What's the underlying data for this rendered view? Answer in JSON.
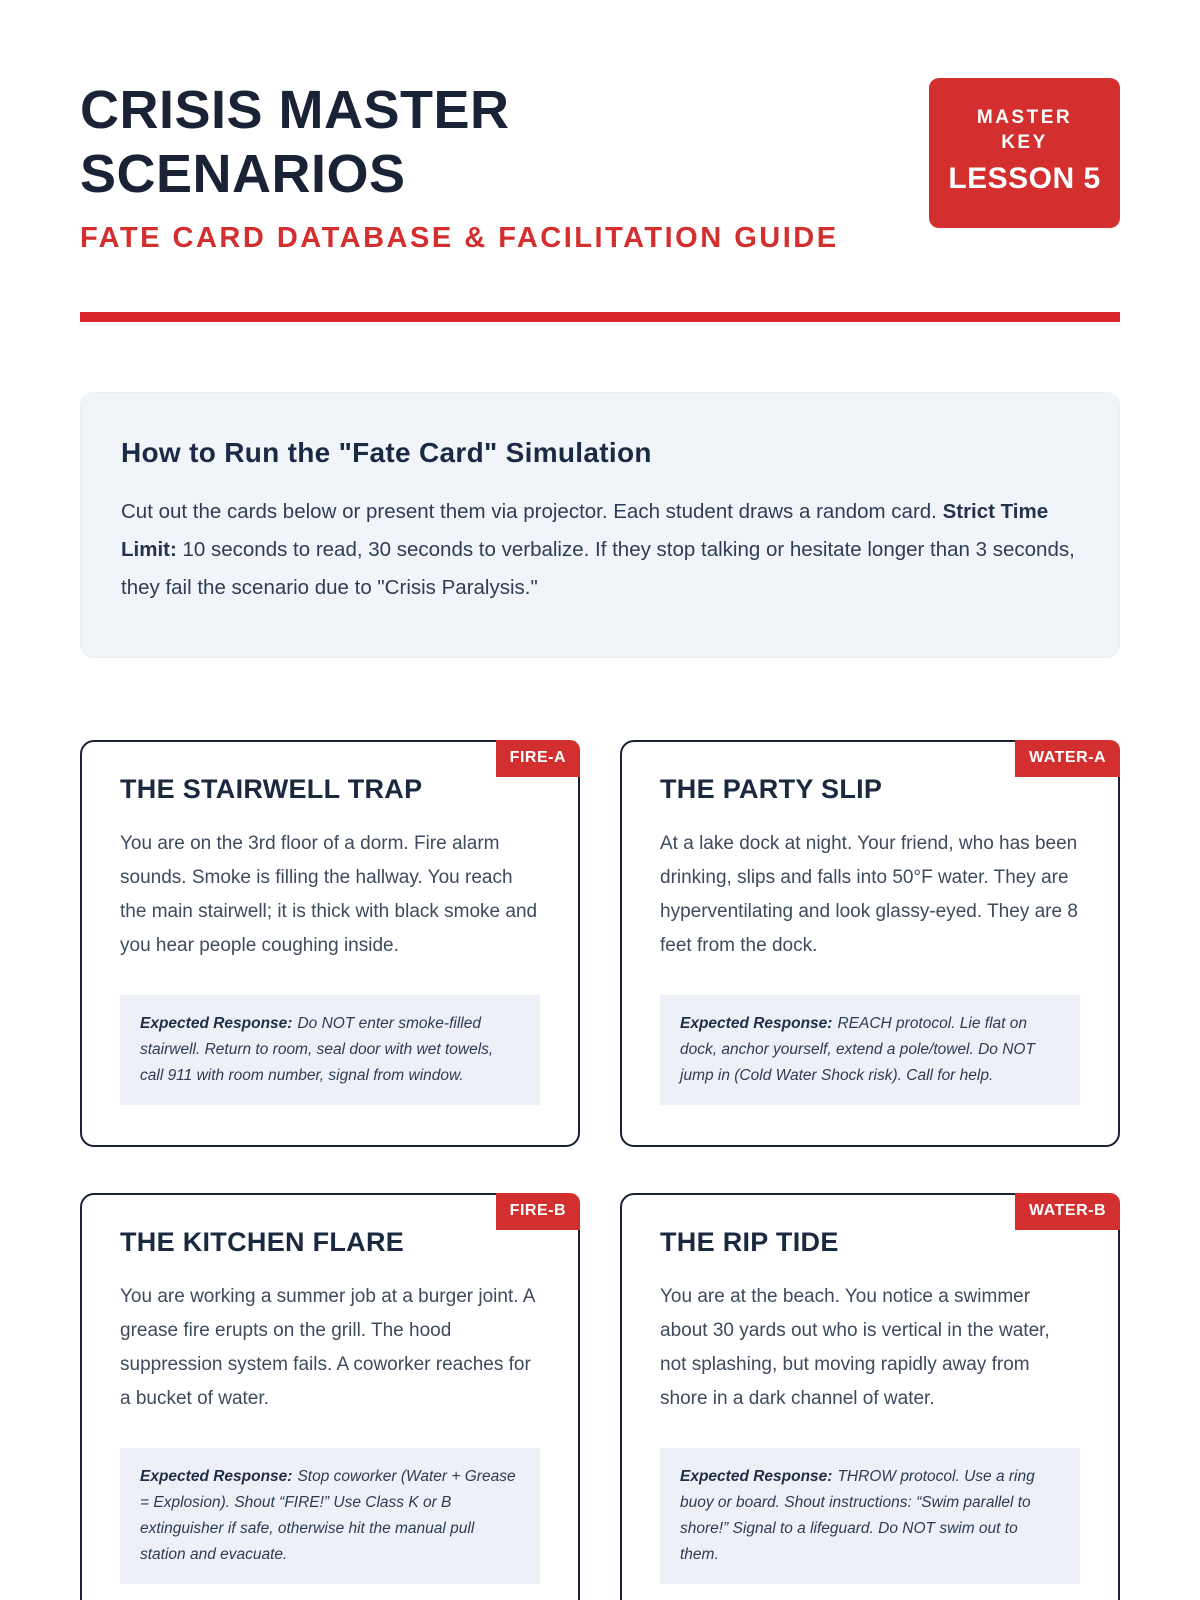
{
  "page": {
    "title_line1": "CRISIS MASTER",
    "title_line2": "SCENARIOS",
    "subtitle": "FATE CARD DATABASE & FACILITATION GUIDE",
    "badge": {
      "line1": "MASTER",
      "line2": "KEY",
      "lesson": "LESSON 5"
    }
  },
  "instructions": {
    "heading": "How to Run the \"Fate Card\" Simulation",
    "body_part1": "Cut out the cards below or present them via projector. Each student draws a random card. ",
    "body_bold": "Strict Time Limit:",
    "body_part2": " 10 seconds to read, 30 seconds to verbalize. If they stop talking or hesitate longer than 3 seconds, they fail the scenario due to \"Crisis Paralysis.\""
  },
  "cards": [
    {
      "code": "FIRE-A",
      "title": "THE STAIRWELL TRAP",
      "body": "You are on the 3rd floor of a dorm. Fire alarm sounds. Smoke is filling the hallway. You reach the main stairwell; it is thick with black smoke and you hear people coughing inside.",
      "response_label": "Expected Response:",
      "response": "Do NOT enter smoke-filled stairwell. Return to room, seal door with wet towels, call 911 with room number, signal from window."
    },
    {
      "code": "WATER-A",
      "title": "THE PARTY SLIP",
      "body": "At a lake dock at night. Your friend, who has been drinking, slips and falls into 50°F water. They are hyperventilating and look glassy-eyed. They are 8 feet from the dock.",
      "response_label": "Expected Response:",
      "response": "REACH protocol. Lie flat on dock, anchor yourself, extend a pole/towel. Do NOT jump in (Cold Water Shock risk). Call for help."
    },
    {
      "code": "FIRE-B",
      "title": "THE KITCHEN FLARE",
      "body": "You are working a summer job at a burger joint. A grease fire erupts on the grill. The hood suppression system fails. A coworker reaches for a bucket of water.",
      "response_label": "Expected Response:",
      "response": "Stop coworker (Water + Grease = Explosion). Shout “FIRE!” Use Class K or B extinguisher if safe, otherwise hit the manual pull station and evacuate."
    },
    {
      "code": "WATER-B",
      "title": "THE RIP TIDE",
      "body": "You are at the beach. You notice a swimmer about 30 yards out who is vertical in the water, not splashing, but moving rapidly away from shore in a dark channel of water.",
      "response_label": "Expected Response:",
      "response": "THROW protocol. Use a ring buoy or board. Shout instructions: “Swim parallel to shore!” Signal to a lifeguard. Do NOT swim out to them."
    }
  ],
  "colors": {
    "accent_red": "#d32f2f",
    "navy": "#1a2236",
    "info_bg": "#f1f5f9",
    "response_bg": "#edf1f7"
  }
}
